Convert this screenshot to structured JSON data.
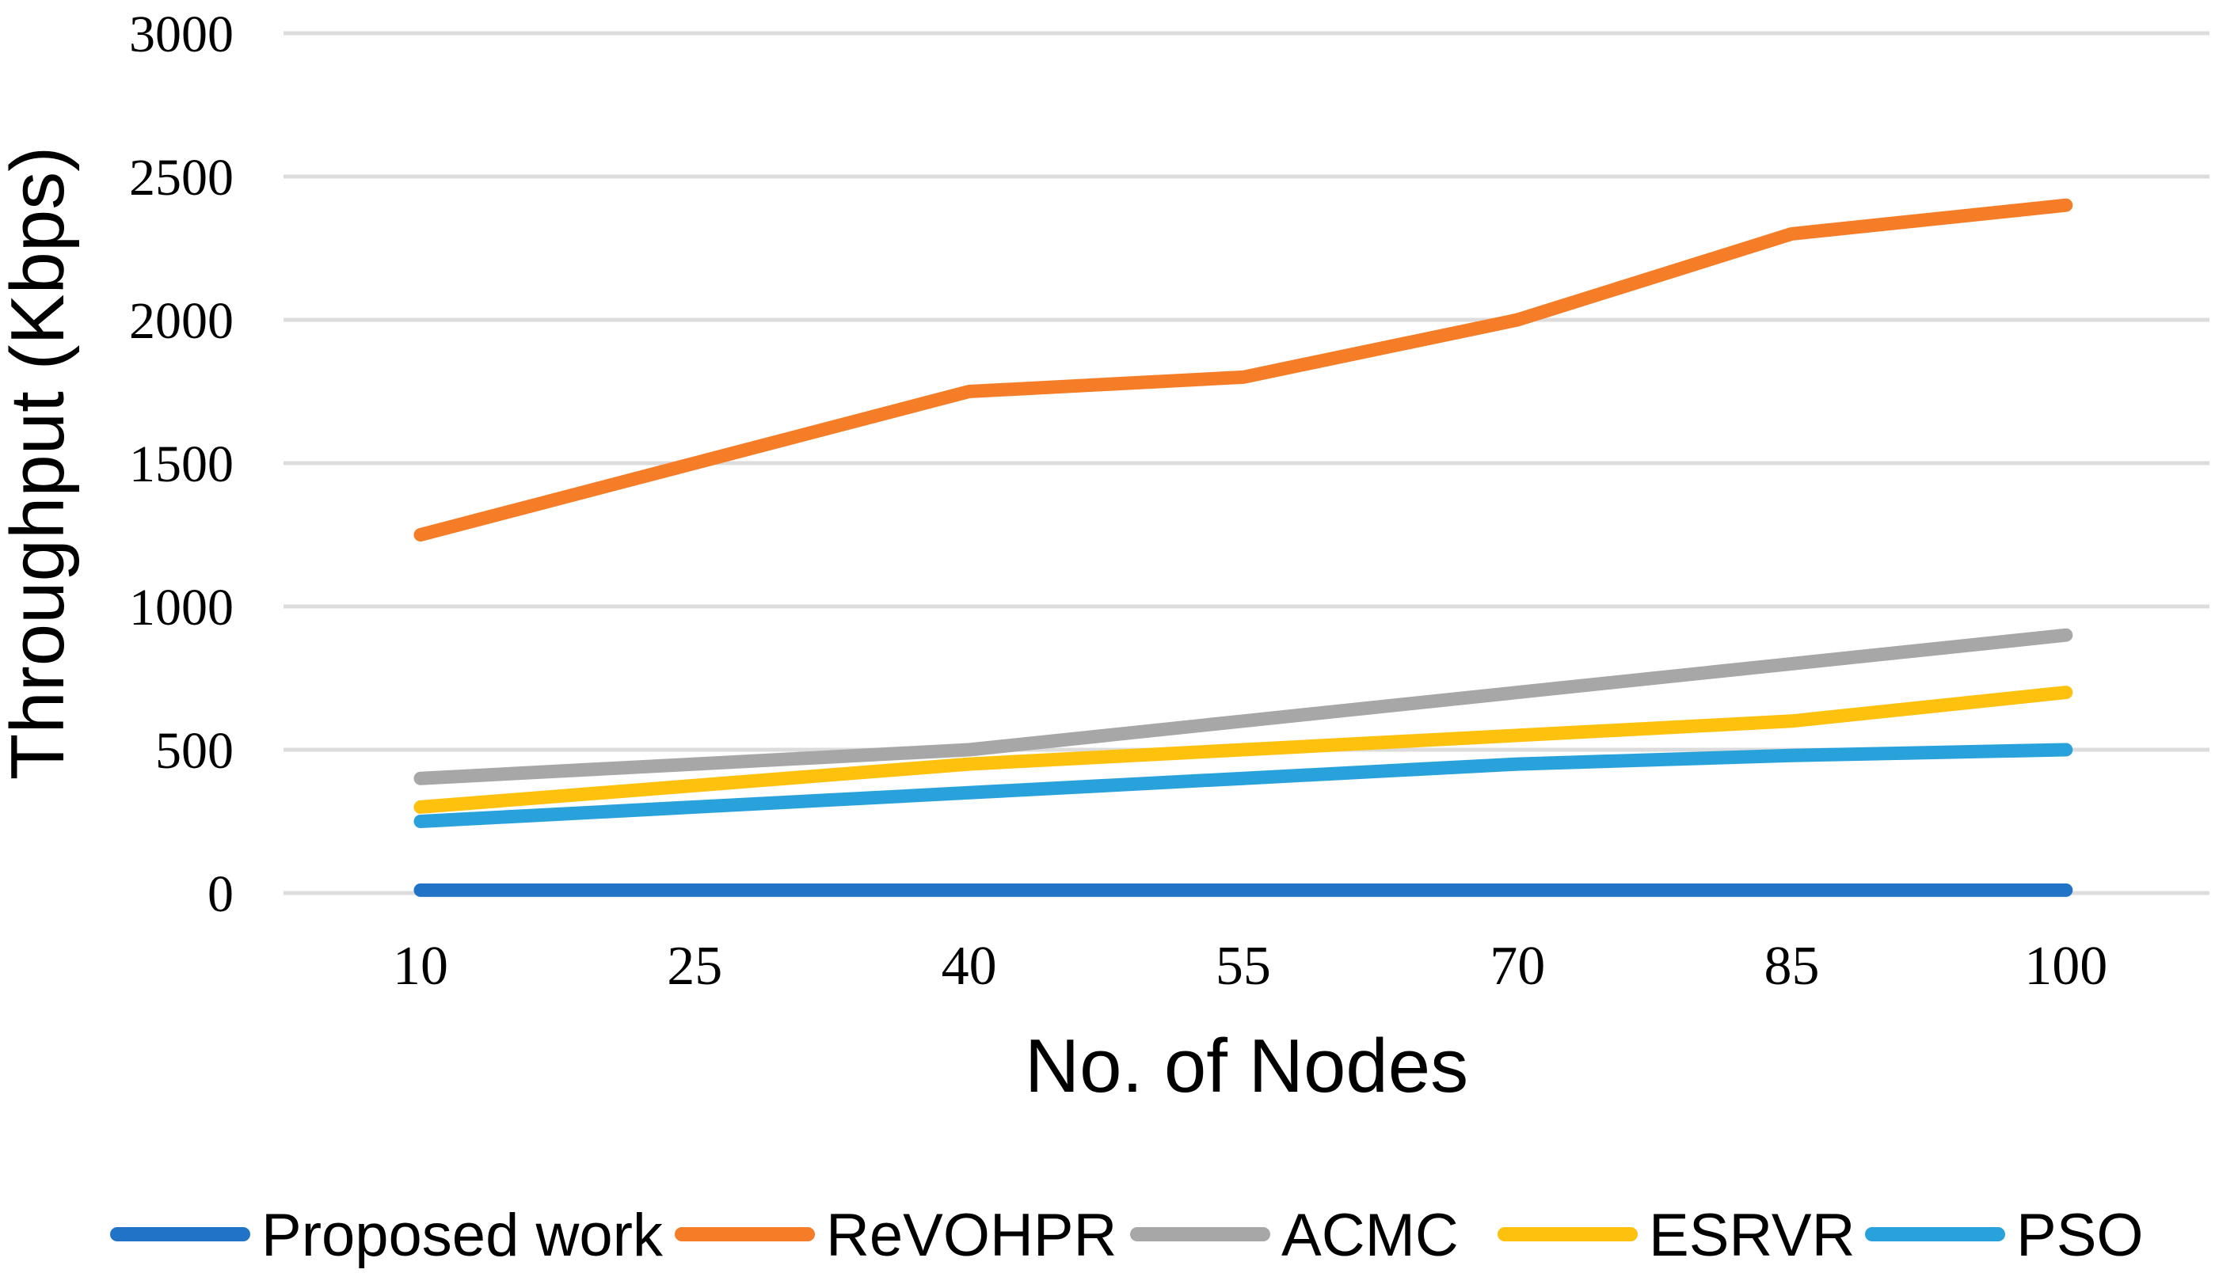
{
  "chart_data": {
    "type": "line",
    "title": "",
    "x": [
      10,
      25,
      40,
      55,
      70,
      85,
      100
    ],
    "xlabel": "No. of Nodes",
    "ylabel": "Throughput (Kbps)",
    "ylim": [
      0,
      3000
    ],
    "yticks": [
      0,
      500,
      1000,
      1500,
      2000,
      2500,
      3000
    ],
    "grid": true,
    "legend_position": "bottom",
    "gridline_color": "#DCDCDC",
    "text_color": "#000000",
    "series": [
      {
        "name": "Proposed work",
        "color": "#2073C6",
        "values": [
          10,
          10,
          10,
          10,
          10,
          10,
          10
        ]
      },
      {
        "name": "ReVOHPR",
        "color": "#F57D28",
        "values": [
          1250,
          1500,
          1750,
          1800,
          2000,
          2300,
          2400
        ]
      },
      {
        "name": "ACMC",
        "color": "#A7A7A7",
        "values": [
          400,
          450,
          500,
          600,
          700,
          800,
          900
        ]
      },
      {
        "name": "ESRVR",
        "color": "#FEC10D",
        "values": [
          300,
          375,
          450,
          500,
          550,
          600,
          700
        ]
      },
      {
        "name": "PSO",
        "color": "#29A2DB",
        "values": [
          250,
          300,
          350,
          400,
          450,
          480,
          500
        ]
      }
    ]
  }
}
